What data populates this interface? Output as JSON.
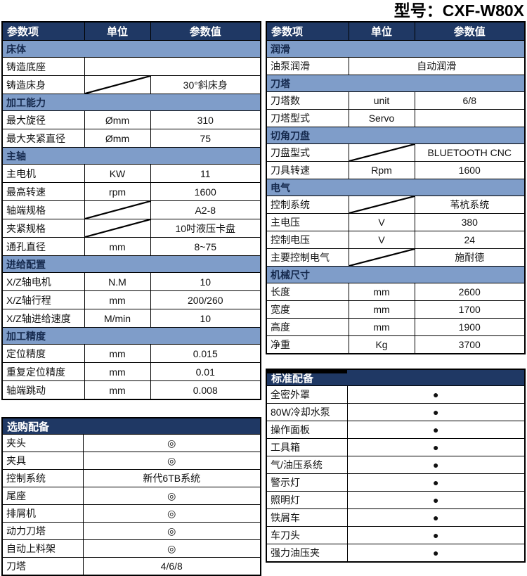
{
  "title": "型号：CXF-W80X",
  "colors": {
    "header_bg": "#1f3864",
    "header_text": "#ffffff",
    "section_bg": "#7f9dc9",
    "section_text": "#15294d",
    "border": "#000000"
  },
  "symbols": {
    "standard_bullet": "●",
    "optional_bullet": "◎",
    "diagonal_slash": "slash"
  },
  "tables": {
    "left_specs": {
      "headers": [
        "参数项",
        "单位",
        "参数值"
      ],
      "sections": [
        {
          "title": "床体",
          "rows": [
            {
              "label": "铸造底座",
              "merged": true,
              "value": ""
            },
            {
              "label": "铸造床身",
              "slash": true,
              "value": "30°斜床身"
            }
          ]
        },
        {
          "title": "加工能力",
          "rows": [
            {
              "label": "最大旋径",
              "unit": "Ømm",
              "value": "310"
            },
            {
              "label": "最大夹紧直径",
              "unit": "Ømm",
              "value": "75"
            }
          ]
        },
        {
          "title": "主轴",
          "rows": [
            {
              "label": "主电机",
              "unit": "KW",
              "value": "11"
            },
            {
              "label": "最高转速",
              "unit": "rpm",
              "value": "1600"
            },
            {
              "label": "轴端规格",
              "slash": true,
              "value": "A2-8"
            },
            {
              "label": "夹紧规格",
              "slash": true,
              "value": "10吋液压卡盘"
            },
            {
              "label": "通孔直径",
              "unit": "mm",
              "value": "8~75"
            }
          ]
        },
        {
          "title": "进给配置",
          "rows": [
            {
              "label": "X/Z轴电机",
              "unit": "N.M",
              "value": "10"
            },
            {
              "label": "X/Z轴行程",
              "unit": "mm",
              "value": "200/260"
            },
            {
              "label": "X/Z轴进给速度",
              "unit": "M/min",
              "value": "10"
            }
          ]
        },
        {
          "title": "加工精度",
          "rows": [
            {
              "label": "定位精度",
              "unit": "mm",
              "value": "0.015"
            },
            {
              "label": "重复定位精度",
              "unit": "mm",
              "value": "0.01"
            },
            {
              "label": "轴端跳动",
              "unit": "mm",
              "value": "0.008"
            }
          ]
        }
      ]
    },
    "right_specs": {
      "headers": [
        "参数项",
        "单位",
        "参数值"
      ],
      "sections": [
        {
          "title": "润滑",
          "rows": [
            {
              "label": "油泵润滑",
              "merged": true,
              "value": "自动润滑"
            }
          ]
        },
        {
          "title": "刀塔",
          "rows": [
            {
              "label": "刀塔数",
              "unit": "unit",
              "value": "6/8"
            },
            {
              "label": "刀塔型式",
              "unit": "Servo",
              "value": ""
            }
          ]
        },
        {
          "title": "切角刀盘",
          "rows": [
            {
              "label": "刀盘型式",
              "slash": true,
              "value": "BLUETOOTH CNC"
            },
            {
              "label": "刀具转速",
              "unit": "Rpm",
              "value": "1600"
            }
          ]
        },
        {
          "title": "电气",
          "rows": [
            {
              "label": "控制系统",
              "slash": true,
              "value": "苇杭系统"
            },
            {
              "label": "主电压",
              "unit": "V",
              "value": "380"
            },
            {
              "label": "控制电压",
              "unit": "V",
              "value": "24"
            },
            {
              "label": "主要控制电气",
              "slash": true,
              "value": "施耐德"
            }
          ]
        },
        {
          "title": "机械尺寸",
          "rows": [
            {
              "label": "长度",
              "unit": "mm",
              "value": "2600"
            },
            {
              "label": "宽度",
              "unit": "mm",
              "value": "1700"
            },
            {
              "label": "高度",
              "unit": "mm",
              "value": "1900"
            },
            {
              "label": "净重",
              "unit": "Kg",
              "value": "3700"
            }
          ]
        }
      ]
    },
    "optional_equipment": {
      "title": "选购配备",
      "rows": [
        {
          "label": "夹头",
          "value": "◎",
          "bullet": true
        },
        {
          "label": "夹具",
          "value": "◎",
          "bullet": true
        },
        {
          "label": "控制系统",
          "value": "新代6TB系统",
          "big": true
        },
        {
          "label": "尾座",
          "value": "◎",
          "bullet": true
        },
        {
          "label": "排屑机",
          "value": "◎",
          "bullet": true
        },
        {
          "label": "动力刀塔",
          "value": "◎",
          "bullet": true
        },
        {
          "label": "自动上料架",
          "value": "◎",
          "bullet": true
        },
        {
          "label": "刀塔",
          "value": "4/6/8",
          "big": true
        }
      ]
    },
    "standard_equipment": {
      "title": "标准配备",
      "rows": [
        {
          "label": "全密外罩",
          "value": "●",
          "bullet": true
        },
        {
          "label": "80W冷却水泵",
          "value": "●",
          "bullet": true
        },
        {
          "label": "操作面板",
          "value": "●",
          "bullet": true
        },
        {
          "label": "工具箱",
          "value": "●",
          "bullet": true
        },
        {
          "label": "气/油压系统",
          "value": "●",
          "bullet": true
        },
        {
          "label": "警示灯",
          "value": "●",
          "bullet": true
        },
        {
          "label": "照明灯",
          "value": "●",
          "bullet": true
        },
        {
          "label": "铁屑车",
          "value": "●",
          "bullet": true
        },
        {
          "label": "车刀头",
          "value": "●",
          "bullet": true
        },
        {
          "label": "强力油压夹",
          "value": "●",
          "bullet": true
        }
      ]
    }
  }
}
